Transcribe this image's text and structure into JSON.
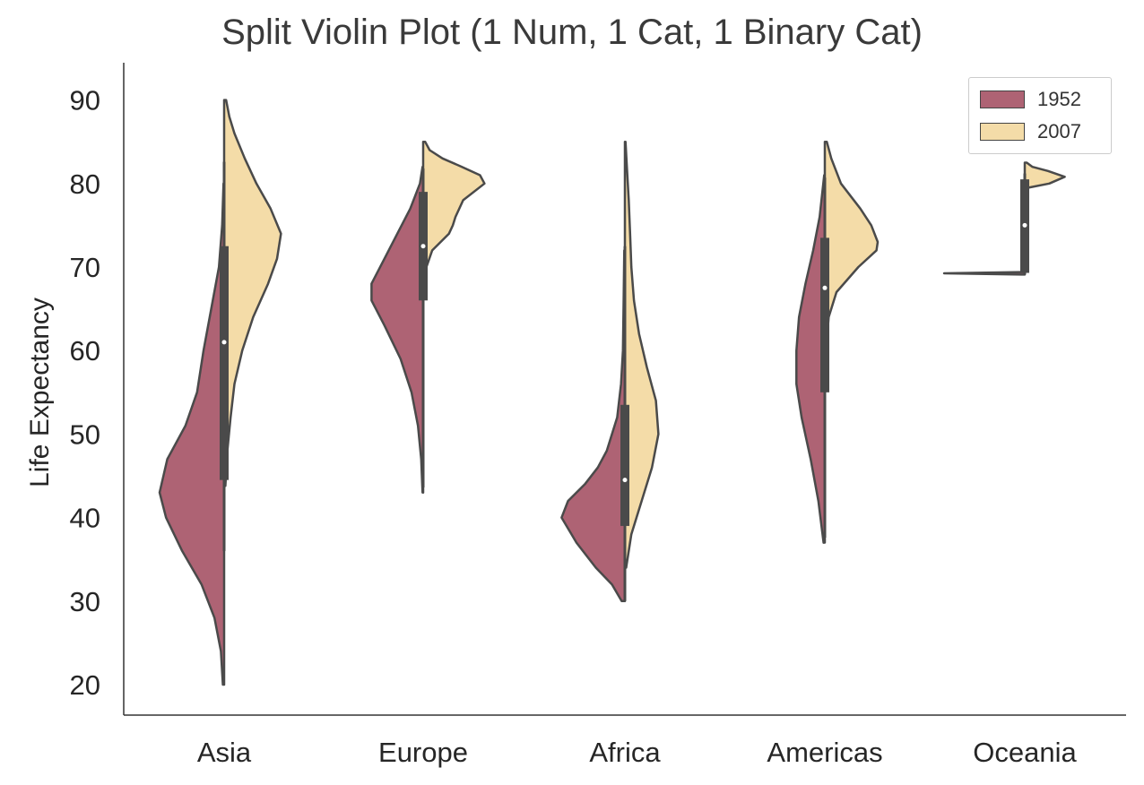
{
  "chart_data": {
    "type": "violin",
    "title": "Split Violin Plot (1 Num, 1 Cat, 1 Binary Cat)",
    "xlabel": "",
    "ylabel": "Life Expectancy",
    "ylim": [
      17,
      94
    ],
    "yticks": [
      20,
      30,
      40,
      50,
      60,
      70,
      80,
      90
    ],
    "grid": false,
    "legend_position": "top-right",
    "categories": [
      "Asia",
      "Europe",
      "Africa",
      "Americas",
      "Oceania"
    ],
    "series": [
      {
        "name": "1952",
        "color": "#ae6374",
        "violins": [
          {
            "category": "Asia",
            "min": 20,
            "max": 80,
            "median": 44.9,
            "profile": [
              [
                20,
                0.02
              ],
              [
                24,
                0.05
              ],
              [
                28,
                0.15
              ],
              [
                32,
                0.35
              ],
              [
                36,
                0.65
              ],
              [
                40,
                0.9
              ],
              [
                43,
                1.0
              ],
              [
                47,
                0.88
              ],
              [
                51,
                0.6
              ],
              [
                55,
                0.42
              ],
              [
                60,
                0.32
              ],
              [
                65,
                0.2
              ],
              [
                70,
                0.08
              ],
              [
                75,
                0.03
              ],
              [
                80,
                0.01
              ]
            ]
          },
          {
            "category": "Europe",
            "min": 43,
            "max": 82,
            "median": 65.9,
            "profile": [
              [
                43,
                0.01
              ],
              [
                47,
                0.03
              ],
              [
                51,
                0.08
              ],
              [
                55,
                0.18
              ],
              [
                59,
                0.35
              ],
              [
                63,
                0.6
              ],
              [
                66,
                0.8
              ],
              [
                68,
                0.8
              ],
              [
                71,
                0.6
              ],
              [
                74,
                0.4
              ],
              [
                77,
                0.2
              ],
              [
                80,
                0.05
              ],
              [
                82,
                0.01
              ]
            ]
          },
          {
            "category": "Africa",
            "min": 30,
            "max": 72,
            "median": 38.8,
            "profile": [
              [
                30,
                0.05
              ],
              [
                32,
                0.2
              ],
              [
                34,
                0.45
              ],
              [
                37,
                0.75
              ],
              [
                40,
                0.98
              ],
              [
                42,
                0.88
              ],
              [
                44,
                0.62
              ],
              [
                46,
                0.42
              ],
              [
                48,
                0.28
              ],
              [
                52,
                0.12
              ],
              [
                56,
                0.06
              ],
              [
                60,
                0.03
              ],
              [
                66,
                0.02
              ],
              [
                72,
                0.01
              ]
            ]
          },
          {
            "category": "Americas",
            "min": 37,
            "max": 81,
            "median": 54.7,
            "profile": [
              [
                37,
                0.02
              ],
              [
                42,
                0.1
              ],
              [
                47,
                0.22
              ],
              [
                52,
                0.36
              ],
              [
                56,
                0.44
              ],
              [
                60,
                0.44
              ],
              [
                64,
                0.4
              ],
              [
                68,
                0.3
              ],
              [
                72,
                0.18
              ],
              [
                76,
                0.08
              ],
              [
                81,
                0.01
              ]
            ]
          },
          {
            "category": "Oceania",
            "min": 69.1,
            "max": 69.4,
            "median": 69.3,
            "profile": [
              [
                69.1,
                0.04
              ],
              [
                69.25,
                1.0
              ],
              [
                69.4,
                0.04
              ]
            ]
          }
        ]
      },
      {
        "name": "2007",
        "color": "#f4dca8",
        "violins": [
          {
            "category": "Asia",
            "min": 43.8,
            "max": 82.6,
            "median": 72.4,
            "profile": [
              [
                43.8,
                0.02
              ],
              [
                48,
                0.05
              ],
              [
                52,
                0.1
              ],
              [
                56,
                0.16
              ],
              [
                60,
                0.28
              ],
              [
                64,
                0.45
              ],
              [
                68,
                0.68
              ],
              [
                71,
                0.82
              ],
              [
                74,
                0.88
              ],
              [
                77,
                0.72
              ],
              [
                80,
                0.5
              ],
              [
                83,
                0.32
              ],
              [
                86,
                0.16
              ],
              [
                88,
                0.08
              ],
              [
                90,
                0.03
              ]
            ]
          },
          {
            "category": "Europe",
            "min": 71.8,
            "max": 81.8,
            "median": 78.6,
            "profile": [
              [
                70,
                0.05
              ],
              [
                72,
                0.14
              ],
              [
                74,
                0.4
              ],
              [
                75,
                0.46
              ],
              [
                76,
                0.5
              ],
              [
                78,
                0.62
              ],
              [
                80,
                0.95
              ],
              [
                81,
                0.88
              ],
              [
                82,
                0.6
              ],
              [
                83,
                0.3
              ],
              [
                84,
                0.1
              ],
              [
                85,
                0.03
              ]
            ]
          },
          {
            "category": "Africa",
            "min": 39.6,
            "max": 76.4,
            "median": 52.9,
            "profile": [
              [
                34,
                0.02
              ],
              [
                38,
                0.1
              ],
              [
                42,
                0.26
              ],
              [
                46,
                0.42
              ],
              [
                50,
                0.52
              ],
              [
                54,
                0.48
              ],
              [
                58,
                0.34
              ],
              [
                62,
                0.22
              ],
              [
                66,
                0.14
              ],
              [
                70,
                0.1
              ],
              [
                74,
                0.08
              ],
              [
                78,
                0.06
              ],
              [
                82,
                0.03
              ],
              [
                85,
                0.01
              ]
            ]
          },
          {
            "category": "Americas",
            "min": 60.9,
            "max": 80.7,
            "median": 72.9,
            "profile": [
              [
                60,
                0.02
              ],
              [
                64,
                0.06
              ],
              [
                67,
                0.18
              ],
              [
                70,
                0.52
              ],
              [
                72,
                0.8
              ],
              [
                73,
                0.82
              ],
              [
                75,
                0.72
              ],
              [
                77,
                0.55
              ],
              [
                80,
                0.25
              ],
              [
                83,
                0.1
              ],
              [
                85,
                0.03
              ]
            ]
          },
          {
            "category": "Oceania",
            "min": 80.2,
            "max": 81.2,
            "median": 80.7,
            "profile": [
              [
                79.5,
                0.05
              ],
              [
                80,
                0.38
              ],
              [
                80.8,
                0.62
              ],
              [
                81.5,
                0.36
              ],
              [
                82,
                0.12
              ],
              [
                82.5,
                0.03
              ]
            ]
          }
        ]
      }
    ],
    "boxes": [
      {
        "category": "Asia",
        "q1": 44.5,
        "median": 61,
        "q3": 72.5,
        "whisker_low": 36,
        "whisker_high": 82.6
      },
      {
        "category": "Europe",
        "q1": 66,
        "median": 72.5,
        "q3": 79,
        "whisker_low": 43.6,
        "whisker_high": 81.8
      },
      {
        "category": "Africa",
        "q1": 39,
        "median": 44.5,
        "q3": 53.5,
        "whisker_low": 30,
        "whisker_high": 72.5
      },
      {
        "category": "Americas",
        "q1": 55,
        "median": 67.5,
        "q3": 73.5,
        "whisker_low": 37.6,
        "whisker_high": 80.7
      },
      {
        "category": "Oceania",
        "q1": 69.3,
        "median": 75,
        "q3": 80.5,
        "whisker_low": 69.1,
        "whisker_high": 81.2
      }
    ]
  }
}
